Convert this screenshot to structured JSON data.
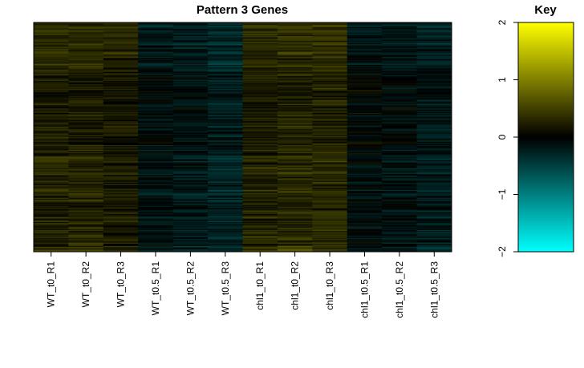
{
  "chart_data": [
    {
      "type": "heatmap",
      "title": "Pattern 3 Genes",
      "columns": [
        "WT_t0_R1",
        "WT_t0_R2",
        "WT_t0_R3",
        "WT_t0.5_R1",
        "WT_t0.5_R2",
        "WT_t0.5_R3",
        "chl1_t0_R1",
        "chl1_t0_R2",
        "chl1_t0_R3",
        "chl1_t0.5_R1",
        "chl1_t0.5_R2",
        "chl1_t0.5_R3"
      ],
      "row_count": 200,
      "column_mean_values": [
        0.25,
        0.25,
        0.2,
        -0.1,
        -0.15,
        -0.25,
        0.25,
        0.3,
        0.3,
        -0.05,
        -0.1,
        -0.2
      ],
      "color_scale": {
        "low": "#00ffff",
        "mid": "#000000",
        "high": "#ffff00",
        "min": -2,
        "max": 2
      },
      "xlabel": "",
      "ylabel": "",
      "grid": false
    },
    {
      "type": "heatmap",
      "title": "Key",
      "ticks": [
        -2,
        -1,
        0,
        1,
        2
      ],
      "tick_labels": [
        "−2",
        "−1",
        "0",
        "1",
        "2"
      ],
      "range": [
        -2,
        2
      ],
      "color_scale": {
        "low": "#00ffff",
        "mid": "#000000",
        "high": "#ffff00"
      }
    }
  ]
}
